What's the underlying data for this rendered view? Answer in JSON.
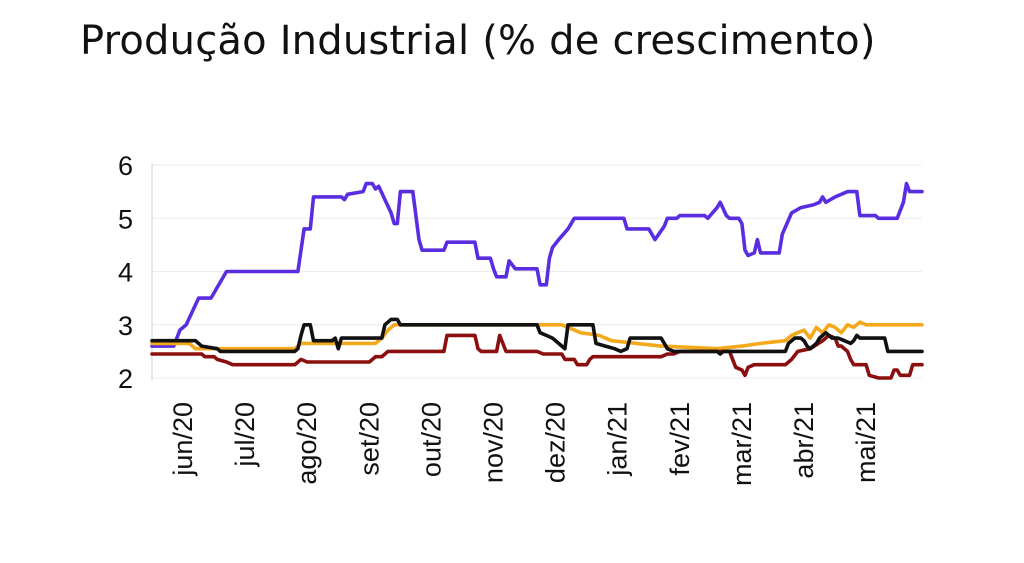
{
  "chart_data": {
    "type": "line",
    "title": "Produção Industrial (% de crescimento)",
    "xlabel": "",
    "ylabel": "",
    "ylim": [
      2,
      6
    ],
    "yticks": [
      2,
      3,
      4,
      5,
      6
    ],
    "x_range": [
      0,
      12.4
    ],
    "categories": [
      "jun/20",
      "jul/20",
      "ago/20",
      "set/20",
      "out/20",
      "nov/20",
      "dez/20",
      "jan/21",
      "fev/21",
      "mar/21",
      "abr/21",
      "mai/21"
    ],
    "grid": true,
    "legend": "none",
    "series": [
      {
        "color": "#5a2de0",
        "points": [
          [
            0,
            2.6
          ],
          [
            0.35,
            2.6
          ],
          [
            0.45,
            2.9
          ],
          [
            0.55,
            3.0
          ],
          [
            0.75,
            3.5
          ],
          [
            0.95,
            3.5
          ],
          [
            1.1,
            3.8
          ],
          [
            1.2,
            4.0
          ],
          [
            2.3,
            4.0
          ],
          [
            2.35,
            4.0
          ],
          [
            2.45,
            4.8
          ],
          [
            2.55,
            4.8
          ],
          [
            2.6,
            5.4
          ],
          [
            2.95,
            5.4
          ],
          [
            3.05,
            5.4
          ],
          [
            3.1,
            5.35
          ],
          [
            3.15,
            5.45
          ],
          [
            3.4,
            5.5
          ],
          [
            3.45,
            5.65
          ],
          [
            3.55,
            5.65
          ],
          [
            3.6,
            5.55
          ],
          [
            3.65,
            5.6
          ],
          [
            3.75,
            5.35
          ],
          [
            3.85,
            5.1
          ],
          [
            3.9,
            4.9
          ],
          [
            3.95,
            4.9
          ],
          [
            4.0,
            5.5
          ],
          [
            4.2,
            5.5
          ],
          [
            4.3,
            4.6
          ],
          [
            4.35,
            4.4
          ],
          [
            4.7,
            4.4
          ],
          [
            4.75,
            4.55
          ],
          [
            5.2,
            4.55
          ],
          [
            5.25,
            4.25
          ],
          [
            5.45,
            4.25
          ],
          [
            5.5,
            4.05
          ],
          [
            5.55,
            3.9
          ],
          [
            5.7,
            3.9
          ],
          [
            5.75,
            4.2
          ],
          [
            5.85,
            4.05
          ],
          [
            6.2,
            4.05
          ],
          [
            6.25,
            3.75
          ],
          [
            6.35,
            3.75
          ],
          [
            6.4,
            4.25
          ],
          [
            6.45,
            4.45
          ],
          [
            6.55,
            4.6
          ],
          [
            6.7,
            4.8
          ],
          [
            6.8,
            5.0
          ],
          [
            7.6,
            5.0
          ],
          [
            7.65,
            4.8
          ],
          [
            8.0,
            4.8
          ],
          [
            8.1,
            4.6
          ],
          [
            8.25,
            4.85
          ],
          [
            8.3,
            5.0
          ],
          [
            8.45,
            5.0
          ],
          [
            8.5,
            5.05
          ],
          [
            8.9,
            5.05
          ],
          [
            8.95,
            5.0
          ],
          [
            9.1,
            5.2
          ],
          [
            9.15,
            5.3
          ],
          [
            9.25,
            5.05
          ],
          [
            9.3,
            5.0
          ],
          [
            9.45,
            5.0
          ],
          [
            9.5,
            4.9
          ],
          [
            9.55,
            4.4
          ],
          [
            9.6,
            4.3
          ],
          [
            9.7,
            4.35
          ],
          [
            9.75,
            4.6
          ],
          [
            9.8,
            4.35
          ],
          [
            9.9,
            4.35
          ],
          [
            10.1,
            4.35
          ],
          [
            10.15,
            4.7
          ],
          [
            10.3,
            5.1
          ],
          [
            10.45,
            5.2
          ],
          [
            10.65,
            5.25
          ],
          [
            10.75,
            5.3
          ],
          [
            10.8,
            5.4
          ],
          [
            10.85,
            5.3
          ],
          [
            11.0,
            5.4
          ],
          [
            11.1,
            5.45
          ],
          [
            11.2,
            5.5
          ],
          [
            11.35,
            5.5
          ],
          [
            11.4,
            5.05
          ],
          [
            11.65,
            5.05
          ],
          [
            11.7,
            5.0
          ],
          [
            12.0,
            5.0
          ],
          [
            12.1,
            5.3
          ],
          [
            12.15,
            5.65
          ],
          [
            12.2,
            5.5
          ],
          [
            12.4,
            5.5
          ]
        ]
      },
      {
        "color": "#f4a91c",
        "points": [
          [
            0,
            2.65
          ],
          [
            0.6,
            2.65
          ],
          [
            0.7,
            2.55
          ],
          [
            2.3,
            2.55
          ],
          [
            2.4,
            2.65
          ],
          [
            3.6,
            2.65
          ],
          [
            3.7,
            2.75
          ],
          [
            3.8,
            2.9
          ],
          [
            3.9,
            3.0
          ],
          [
            6.6,
            3.0
          ],
          [
            6.7,
            2.95
          ],
          [
            6.9,
            2.85
          ],
          [
            7.2,
            2.8
          ],
          [
            7.4,
            2.7
          ],
          [
            8.2,
            2.6
          ],
          [
            9.1,
            2.55
          ],
          [
            9.5,
            2.6
          ],
          [
            9.8,
            2.65
          ],
          [
            10.2,
            2.7
          ],
          [
            10.3,
            2.8
          ],
          [
            10.4,
            2.85
          ],
          [
            10.5,
            2.9
          ],
          [
            10.6,
            2.75
          ],
          [
            10.7,
            2.95
          ],
          [
            10.8,
            2.85
          ],
          [
            10.9,
            3.0
          ],
          [
            11.0,
            2.95
          ],
          [
            11.1,
            2.85
          ],
          [
            11.2,
            3.0
          ],
          [
            11.3,
            2.95
          ],
          [
            11.4,
            3.05
          ],
          [
            11.5,
            3.0
          ],
          [
            12.4,
            3.0
          ]
        ]
      },
      {
        "color": "#8b0f0f",
        "points": [
          [
            0,
            2.45
          ],
          [
            0.8,
            2.45
          ],
          [
            0.85,
            2.4
          ],
          [
            1.0,
            2.4
          ],
          [
            1.05,
            2.35
          ],
          [
            1.2,
            2.3
          ],
          [
            1.3,
            2.25
          ],
          [
            2.3,
            2.25
          ],
          [
            2.4,
            2.35
          ],
          [
            2.5,
            2.3
          ],
          [
            3.5,
            2.3
          ],
          [
            3.6,
            2.4
          ],
          [
            3.7,
            2.4
          ],
          [
            3.8,
            2.5
          ],
          [
            4.7,
            2.5
          ],
          [
            4.75,
            2.8
          ],
          [
            5.2,
            2.8
          ],
          [
            5.25,
            2.55
          ],
          [
            5.3,
            2.5
          ],
          [
            5.55,
            2.5
          ],
          [
            5.6,
            2.8
          ],
          [
            5.7,
            2.5
          ],
          [
            6.2,
            2.5
          ],
          [
            6.3,
            2.45
          ],
          [
            6.6,
            2.45
          ],
          [
            6.65,
            2.35
          ],
          [
            6.8,
            2.35
          ],
          [
            6.85,
            2.25
          ],
          [
            7.0,
            2.25
          ],
          [
            7.05,
            2.35
          ],
          [
            7.1,
            2.4
          ],
          [
            8.2,
            2.4
          ],
          [
            8.3,
            2.45
          ],
          [
            8.4,
            2.45
          ],
          [
            8.5,
            2.5
          ],
          [
            8.9,
            2.5
          ],
          [
            9.3,
            2.5
          ],
          [
            9.4,
            2.2
          ],
          [
            9.5,
            2.15
          ],
          [
            9.55,
            2.05
          ],
          [
            9.6,
            2.2
          ],
          [
            9.7,
            2.25
          ],
          [
            10.2,
            2.25
          ],
          [
            10.3,
            2.35
          ],
          [
            10.4,
            2.5
          ],
          [
            10.6,
            2.55
          ],
          [
            10.8,
            2.7
          ],
          [
            10.9,
            2.8
          ],
          [
            11.0,
            2.75
          ],
          [
            11.05,
            2.6
          ],
          [
            11.1,
            2.6
          ],
          [
            11.2,
            2.5
          ],
          [
            11.25,
            2.35
          ],
          [
            11.3,
            2.25
          ],
          [
            11.5,
            2.25
          ],
          [
            11.55,
            2.05
          ],
          [
            11.7,
            2.0
          ],
          [
            11.9,
            2.0
          ],
          [
            11.95,
            2.15
          ],
          [
            12.0,
            2.15
          ],
          [
            12.05,
            2.05
          ],
          [
            12.2,
            2.05
          ],
          [
            12.25,
            2.25
          ],
          [
            12.4,
            2.25
          ]
        ]
      },
      {
        "color": "#111111",
        "points": [
          [
            0,
            2.7
          ],
          [
            0.7,
            2.7
          ],
          [
            0.8,
            2.6
          ],
          [
            1.05,
            2.55
          ],
          [
            1.1,
            2.5
          ],
          [
            2.3,
            2.5
          ],
          [
            2.35,
            2.55
          ],
          [
            2.4,
            2.8
          ],
          [
            2.45,
            3.0
          ],
          [
            2.55,
            3.0
          ],
          [
            2.6,
            2.7
          ],
          [
            2.9,
            2.7
          ],
          [
            2.95,
            2.75
          ],
          [
            3.0,
            2.55
          ],
          [
            3.05,
            2.75
          ],
          [
            3.7,
            2.75
          ],
          [
            3.75,
            3.0
          ],
          [
            3.85,
            3.1
          ],
          [
            3.95,
            3.1
          ],
          [
            4.0,
            3.0
          ],
          [
            6.2,
            3.0
          ],
          [
            6.25,
            2.85
          ],
          [
            6.35,
            2.8
          ],
          [
            6.45,
            2.75
          ],
          [
            6.55,
            2.65
          ],
          [
            6.6,
            2.6
          ],
          [
            6.65,
            2.55
          ],
          [
            6.7,
            3.0
          ],
          [
            7.1,
            3.0
          ],
          [
            7.15,
            2.65
          ],
          [
            7.3,
            2.6
          ],
          [
            7.45,
            2.55
          ],
          [
            7.55,
            2.5
          ],
          [
            7.65,
            2.55
          ],
          [
            7.7,
            2.75
          ],
          [
            8.2,
            2.75
          ],
          [
            8.3,
            2.55
          ],
          [
            8.4,
            2.5
          ],
          [
            9.1,
            2.5
          ],
          [
            9.15,
            2.45
          ],
          [
            9.2,
            2.5
          ],
          [
            9.5,
            2.5
          ],
          [
            10.2,
            2.5
          ],
          [
            10.25,
            2.65
          ],
          [
            10.35,
            2.75
          ],
          [
            10.45,
            2.75
          ],
          [
            10.5,
            2.7
          ],
          [
            10.55,
            2.6
          ],
          [
            10.6,
            2.55
          ],
          [
            10.7,
            2.65
          ],
          [
            10.75,
            2.75
          ],
          [
            10.8,
            2.8
          ],
          [
            10.85,
            2.85
          ],
          [
            10.95,
            2.75
          ],
          [
            11.05,
            2.75
          ],
          [
            11.15,
            2.7
          ],
          [
            11.25,
            2.65
          ],
          [
            11.3,
            2.7
          ],
          [
            11.35,
            2.8
          ],
          [
            11.4,
            2.75
          ],
          [
            11.8,
            2.75
          ],
          [
            11.85,
            2.5
          ],
          [
            12.4,
            2.5
          ]
        ]
      }
    ]
  }
}
